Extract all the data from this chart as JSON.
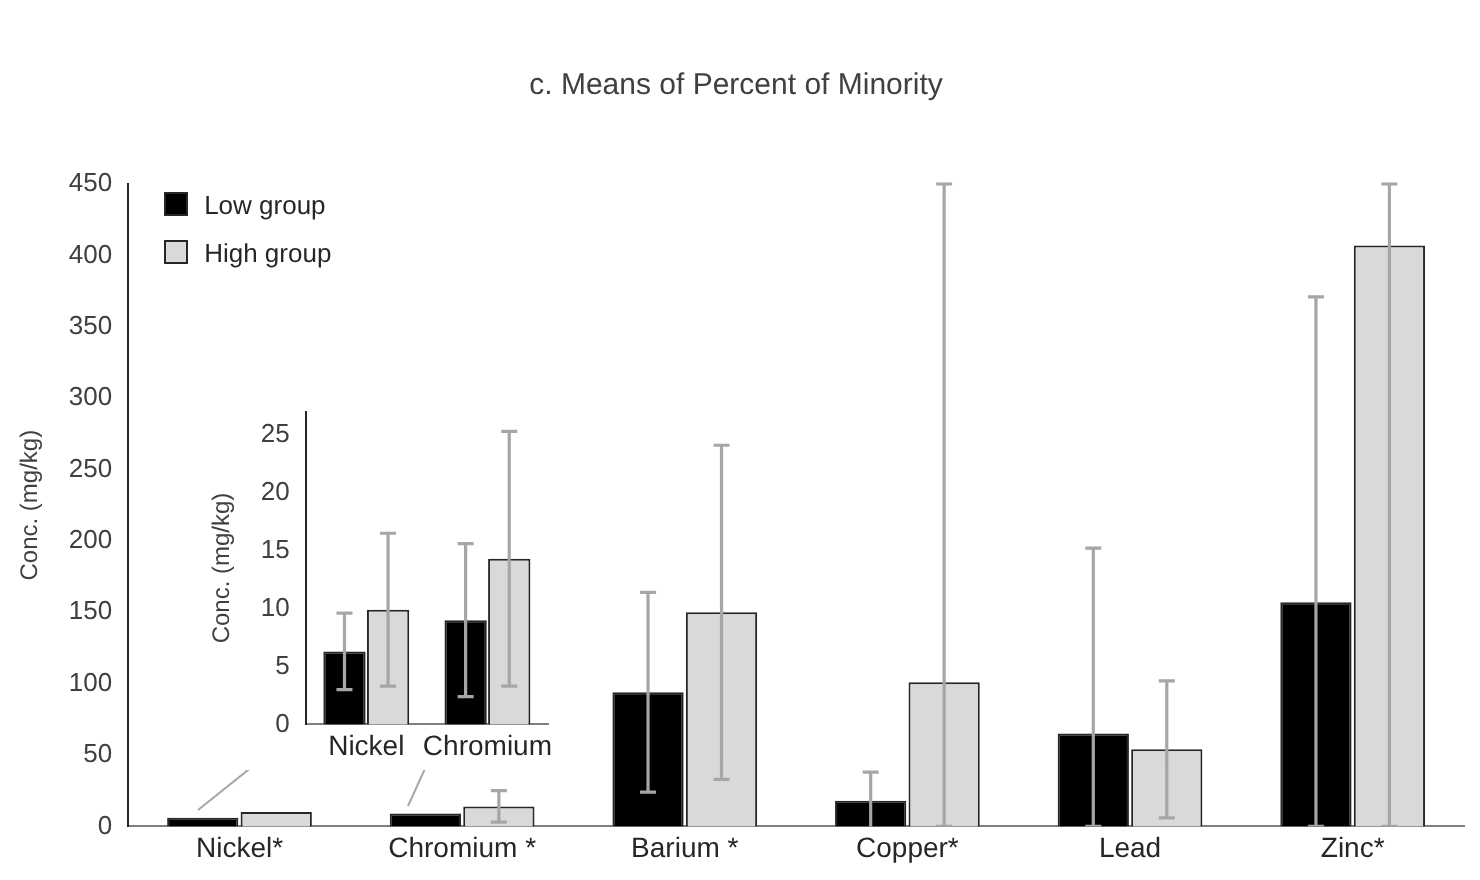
{
  "chart_data": [
    {
      "type": "bar",
      "title": "c. Means of Percent of Minority",
      "ylabel": "Conc. (mg/kg)",
      "categories": [
        "Nickel*",
        "Chromium *",
        "Barium *",
        "Copper*",
        "Lead",
        "Zinc*"
      ],
      "series": [
        {
          "name": "Low group",
          "color": "#000000",
          "values": [
            6,
            9,
            94,
            18,
            65,
            157
          ],
          "errors": [
            null,
            null,
            70,
            20,
            [
              0,
              195
            ],
            [
              0,
              371
            ]
          ]
        },
        {
          "name": "High group",
          "color": "#d9d9d9",
          "values": [
            10,
            14,
            150,
            101,
            54,
            407
          ],
          "errors": [
            null,
            [
              3,
              25
            ],
            117,
            [
              0,
              450
            ],
            48,
            [
              0,
              450
            ]
          ]
        }
      ],
      "ylim": [
        0,
        450
      ],
      "yticks": [
        0,
        50,
        100,
        150,
        200,
        250,
        300,
        350,
        400,
        450
      ],
      "grid": false,
      "legend": "top left"
    },
    {
      "type": "bar",
      "ylabel": "Conc. (mg/kg)",
      "categories": [
        "Nickel",
        "Chromium"
      ],
      "series": [
        {
          "color": "#000000",
          "values": [
            6.3,
            9
          ],
          "errors": [
            3.3,
            6.6
          ]
        },
        {
          "color": "#d9d9d9",
          "values": [
            9.9,
            14.3
          ],
          "errors": [
            6.6,
            11
          ]
        }
      ],
      "ylim": [
        0,
        27
      ],
      "yticks": [
        0,
        5,
        10,
        15,
        20,
        25
      ],
      "grid": false,
      "legend": false
    }
  ]
}
